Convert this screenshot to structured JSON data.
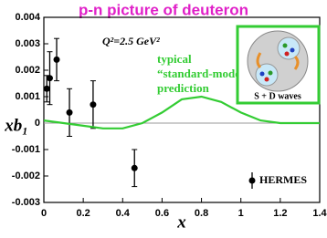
{
  "chart_data": {
    "type": "errorbar",
    "title": "p-n picture of deuteron",
    "ylabel": "xb₁",
    "xlabel": "x",
    "annotation_q2": "Q²=2.5 GeV²",
    "annotation_model": [
      "typical",
      "“standard-model”",
      "prediction"
    ],
    "inset_label": "S + D waves",
    "xlim": [
      0,
      1.4
    ],
    "ylim": [
      -0.003,
      0.004
    ],
    "xticks": [
      0,
      0.2,
      0.4,
      0.6,
      0.8,
      1,
      1.2,
      1.4
    ],
    "yticks": [
      -0.003,
      -0.002,
      -0.001,
      0,
      0.001,
      0.002,
      0.003,
      0.004
    ],
    "series": [
      {
        "name": "HERMES",
        "color": "#000000",
        "x": [
          0.015,
          0.03,
          0.065,
          0.13,
          0.25,
          0.46
        ],
        "values": [
          0.0013,
          0.0017,
          0.0024,
          0.0004,
          0.0007,
          -0.0017
        ],
        "errors": [
          0.0005,
          0.001,
          0.0008,
          0.0009,
          0.0009,
          0.0007
        ]
      },
      {
        "type": "line",
        "color": "#33cc33",
        "x": [
          0,
          0.1,
          0.2,
          0.3,
          0.4,
          0.5,
          0.6,
          0.7,
          0.8,
          0.9,
          1.0,
          1.1,
          1.2,
          1.3,
          1.4
        ],
        "values": [
          0.0001,
          0,
          -0.0001,
          -0.0002,
          -0.0002,
          0,
          0.0004,
          0.0009,
          0.001,
          0.0008,
          0.0004,
          0.0001,
          0,
          0,
          0
        ]
      }
    ]
  }
}
